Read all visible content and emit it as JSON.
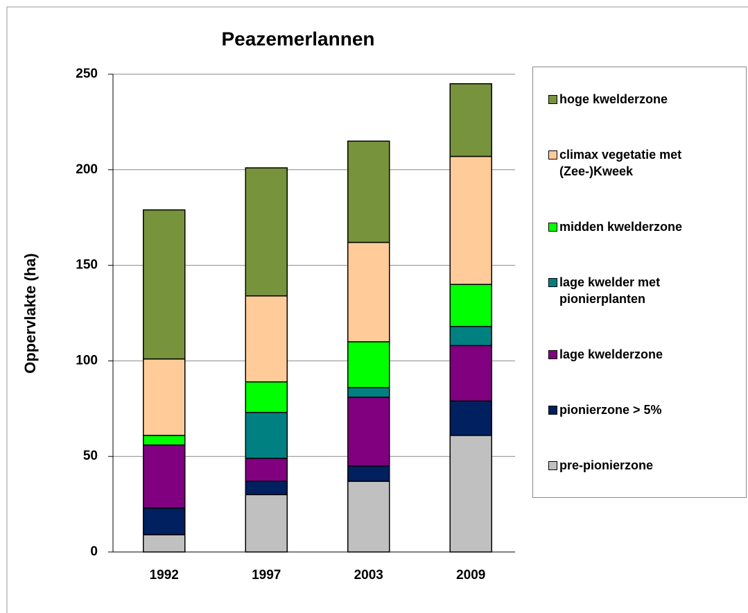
{
  "chart_data": {
    "type": "stacked-bar",
    "title": "Peazemerlannen",
    "y_label": "Oppervlakte (ha)",
    "categories": [
      "1992",
      "1997",
      "2003",
      "2009"
    ],
    "series": [
      {
        "name": "pre-pionierzone",
        "color": "#c0c0c0",
        "values": [
          9,
          30,
          37,
          61
        ]
      },
      {
        "name": "pionierzone > 5%",
        "color": "#002060",
        "values": [
          14,
          7,
          8,
          18
        ]
      },
      {
        "name": "lage kwelderzone",
        "color": "#800080",
        "values": [
          33,
          12,
          36,
          29
        ]
      },
      {
        "name": "lage kwelder met pionierplanten",
        "color": "#008080",
        "values": [
          0,
          24,
          5,
          10
        ]
      },
      {
        "name": "midden kwelderzone",
        "color": "#00ff00",
        "values": [
          5,
          16,
          24,
          22
        ]
      },
      {
        "name": "climax vegetatie met (Zee-)Kweek",
        "color": "#ffcc99",
        "values": [
          40,
          45,
          52,
          67
        ]
      },
      {
        "name": "hoge kwelderzone",
        "color": "#77933c",
        "values": [
          78,
          67,
          53,
          38
        ]
      }
    ],
    "ylim": [
      0,
      250
    ],
    "yticks": [
      0,
      50,
      100,
      150,
      200,
      250
    ],
    "grid": true,
    "legend": "right"
  }
}
